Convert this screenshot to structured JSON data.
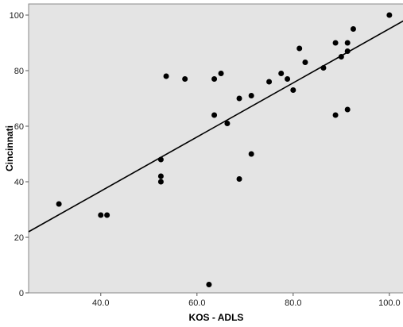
{
  "chart_data": {
    "type": "scatter",
    "title": "",
    "xlabel": "KOS - ADLS",
    "ylabel": "Cincinnati",
    "xlim": [
      25,
      103
    ],
    "ylim": [
      0,
      104
    ],
    "x_ticks": [
      40,
      60,
      80,
      100
    ],
    "x_tick_labels": [
      "40.0",
      "60.0",
      "80.0",
      "100.0"
    ],
    "y_ticks": [
      0,
      20,
      40,
      60,
      80,
      100
    ],
    "y_tick_labels": [
      "0",
      "20",
      "40",
      "60",
      "80",
      "100"
    ],
    "grid": false,
    "legend": "none",
    "plot_background": "#e4e4e4",
    "point_color": "#000000",
    "line_color": "#000000",
    "points": [
      {
        "x": 31.3,
        "y": 32
      },
      {
        "x": 40.0,
        "y": 28
      },
      {
        "x": 41.3,
        "y": 28
      },
      {
        "x": 52.5,
        "y": 48
      },
      {
        "x": 52.5,
        "y": 42
      },
      {
        "x": 52.5,
        "y": 40
      },
      {
        "x": 53.6,
        "y": 78
      },
      {
        "x": 57.5,
        "y": 77
      },
      {
        "x": 62.5,
        "y": 3
      },
      {
        "x": 63.6,
        "y": 77
      },
      {
        "x": 63.6,
        "y": 64
      },
      {
        "x": 65.0,
        "y": 79
      },
      {
        "x": 66.3,
        "y": 61
      },
      {
        "x": 68.8,
        "y": 70
      },
      {
        "x": 68.8,
        "y": 41
      },
      {
        "x": 71.3,
        "y": 71
      },
      {
        "x": 71.3,
        "y": 50
      },
      {
        "x": 75.0,
        "y": 76
      },
      {
        "x": 77.5,
        "y": 79
      },
      {
        "x": 78.8,
        "y": 77
      },
      {
        "x": 80.0,
        "y": 73
      },
      {
        "x": 81.3,
        "y": 88
      },
      {
        "x": 82.5,
        "y": 83
      },
      {
        "x": 86.3,
        "y": 81
      },
      {
        "x": 88.8,
        "y": 90
      },
      {
        "x": 88.8,
        "y": 64
      },
      {
        "x": 90.0,
        "y": 85
      },
      {
        "x": 91.3,
        "y": 87
      },
      {
        "x": 91.3,
        "y": 90
      },
      {
        "x": 91.3,
        "y": 66
      },
      {
        "x": 92.5,
        "y": 95
      },
      {
        "x": 100.0,
        "y": 100
      }
    ],
    "fit_line": {
      "x": [
        25,
        103
      ],
      "y": [
        22,
        98
      ]
    }
  }
}
